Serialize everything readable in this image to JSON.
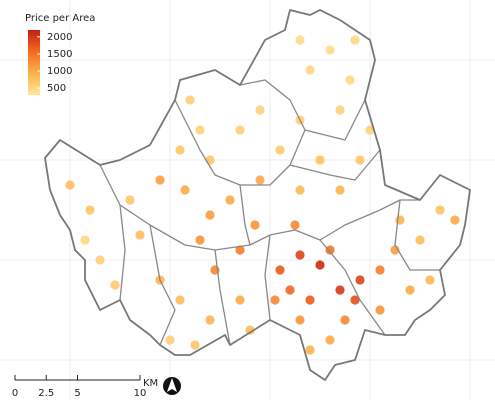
{
  "map": {
    "legend": {
      "title": "Price per Area",
      "range": [
        300,
        2200
      ],
      "ticks": [
        500,
        1000,
        1500,
        2000
      ],
      "colors": [
        "#ffe89a",
        "#fdb14c",
        "#f36b20",
        "#c81e0e"
      ]
    },
    "scale_bar": {
      "ticks": [
        0,
        2.5,
        5,
        10
      ],
      "unit": "KM"
    },
    "points": {
      "x_km": [
        22.8,
        24.4,
        26,
        27.2,
        21.2,
        22,
        23.6,
        25.2,
        27.6,
        20.8,
        29.2,
        22.8,
        26.4,
        18,
        19.2,
        15.6,
        17.2,
        22.4,
        14.8,
        16,
        11.6,
        13.6,
        4.4,
        6,
        6.8,
        8,
        10,
        9.2,
        11.6,
        13.2,
        12.4,
        15.6,
        18,
        18.8,
        5.6,
        14,
        14.8,
        13.2,
        15.6,
        18,
        19.6,
        21.2,
        22.8,
        23.6,
        25.2,
        26.8,
        26,
        22.8,
        27.2,
        24.4,
        27.6,
        26,
        22.8,
        19.6,
        28.4,
        30.8,
        32.4,
        34,
        31.6,
        33.2,
        35.2,
        30.4,
        29.2,
        25.2,
        23.6,
        14.4
      ],
      "y_km": [
        9.2,
        8.4,
        6.4,
        5.6,
        8,
        6.4,
        5.6,
        9.6,
        7.2,
        5.6,
        8,
        4,
        4,
        9.6,
        11.6,
        12.4,
        13.6,
        11.6,
        10.4,
        8,
        15.2,
        14.4,
        14.8,
        12.8,
        8.8,
        6.8,
        10.8,
        13.6,
        7.2,
        5.6,
        2.4,
        4,
        5.6,
        3.2,
        10.4,
        21.6,
        19.2,
        17.6,
        16.8,
        19.2,
        20.8,
        17.6,
        20,
        24,
        25.6,
        23.2,
        20.8,
        26.4,
        26.4,
        16.8,
        16.8,
        14.4,
        14.4,
        15.2,
        19.2,
        12,
        10.4,
        12.8,
        6.4,
        7.2,
        12,
        9.6,
        4.8,
        2.4,
        1.6,
        2
      ],
      "price": [
        1900,
        2100,
        2000,
        1800,
        1700,
        1600,
        1700,
        1500,
        1900,
        1300,
        1400,
        1200,
        1300,
        1400,
        1200,
        1100,
        1000,
        1300,
        1200,
        1300,
        1100,
        1000,
        800,
        700,
        600,
        650,
        800,
        700,
        900,
        800,
        600,
        900,
        1000,
        800,
        500,
        600,
        550,
        700,
        700,
        600,
        550,
        650,
        600,
        500,
        450,
        500,
        550,
        450,
        500,
        750,
        700,
        900,
        850,
        1000,
        550,
        900,
        800,
        750,
        1000,
        850,
        1000,
        1100,
        1200,
        1000,
        900,
        700
      ]
    }
  }
}
